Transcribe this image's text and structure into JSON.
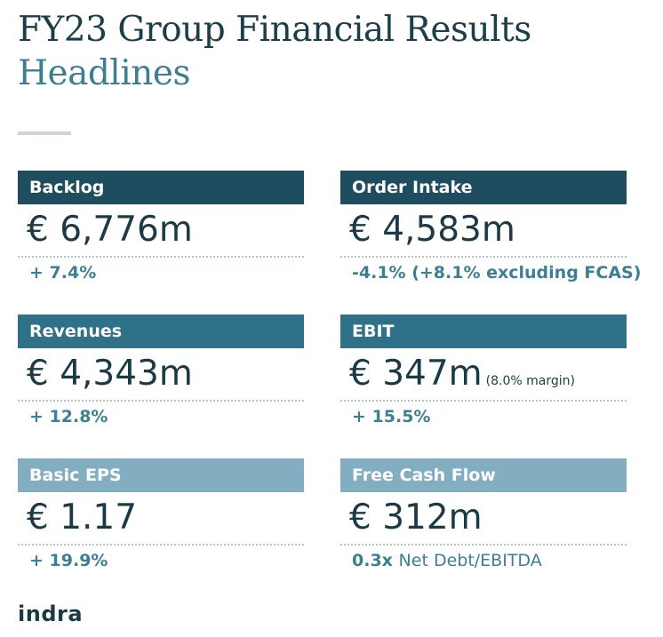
{
  "header": {
    "title": "FY23 Group Financial Results",
    "subtitle": "Headlines"
  },
  "metrics": {
    "backlog": {
      "label": "Backlog",
      "value": "€ 6,776m",
      "change": "+ 7.4%"
    },
    "order_intake": {
      "label": "Order Intake",
      "value": "€ 4,583m",
      "change": "-4.1% (+8.1% excluding FCAS)"
    },
    "revenues": {
      "label": "Revenues",
      "value": "€ 4,343m",
      "change": "+ 12.8%"
    },
    "ebit": {
      "label": "EBIT",
      "value": "€ 347m",
      "note": "(8.0% margin)",
      "change": "+ 15.5%"
    },
    "basic_eps": {
      "label": "Basic EPS",
      "value": "€ 1.17",
      "change": "+ 19.9%"
    },
    "free_cash_flow": {
      "label": "Free Cash Flow",
      "value": "€ 312m",
      "change_bold": "0.3x",
      "change_rest": "Net Debt/EBITDA"
    }
  },
  "footer": {
    "logo_text": "indra"
  },
  "colors": {
    "header_dark": "#1d4d5e",
    "header_mid": "#2f7189",
    "header_light": "#83aec1",
    "accent_text": "#3d7f94",
    "title_text": "#1c3d4a"
  }
}
